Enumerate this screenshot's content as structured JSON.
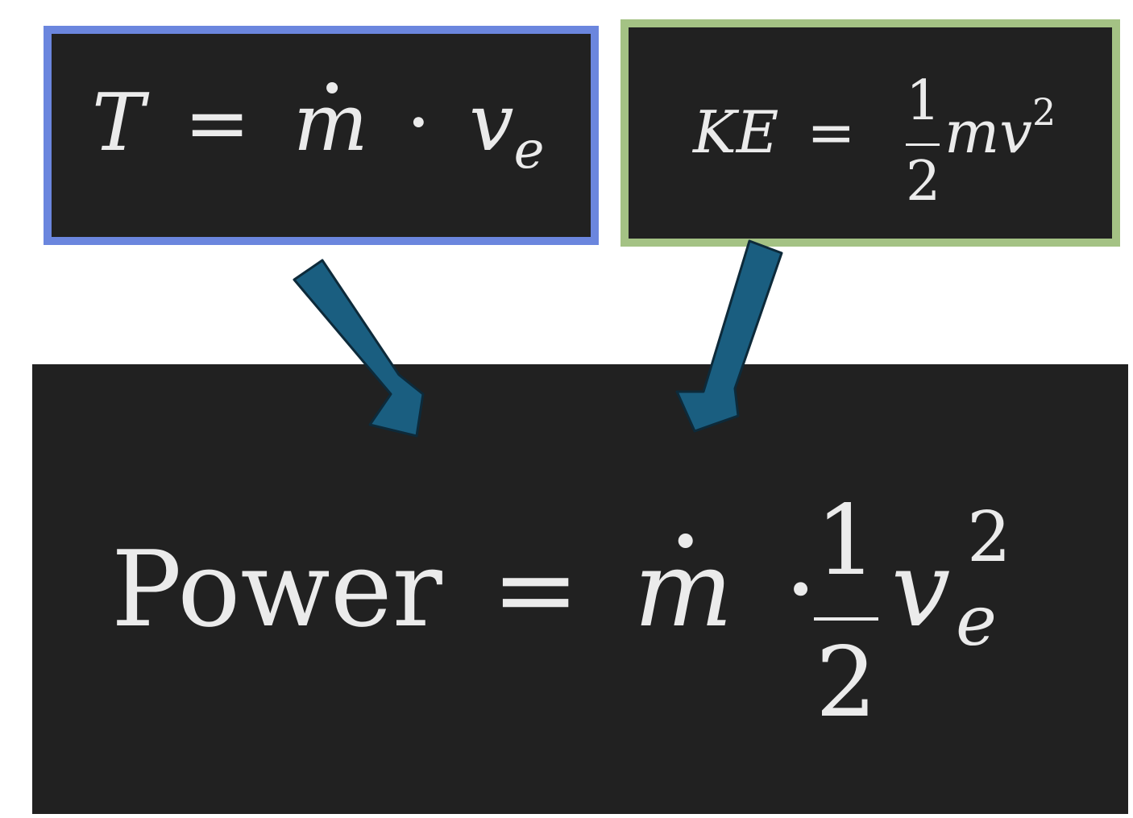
{
  "thrust_equation": {
    "lhs": "T",
    "equals": "=",
    "mass_flow": "m",
    "dot_operator": "·",
    "velocity": "v",
    "velocity_subscript": "e"
  },
  "kinetic_energy_equation": {
    "lhs": "KE",
    "equals": "=",
    "numerator": "1",
    "denominator": "2",
    "mass": "mv",
    "exponent": "2"
  },
  "power_equation": {
    "lhs": "Power",
    "equals": "=",
    "mass_flow": "m",
    "dot_operator": "·",
    "numerator": "1",
    "denominator": "2",
    "velocity": "v",
    "velocity_subscript": "e",
    "exponent": "2"
  },
  "colors": {
    "thrust_border": "#6b86de",
    "ke_border": "#a4c284",
    "panel_background": "#212121",
    "arrow_fill": "#1a5e80",
    "arrow_stroke": "#0d2a3a"
  }
}
